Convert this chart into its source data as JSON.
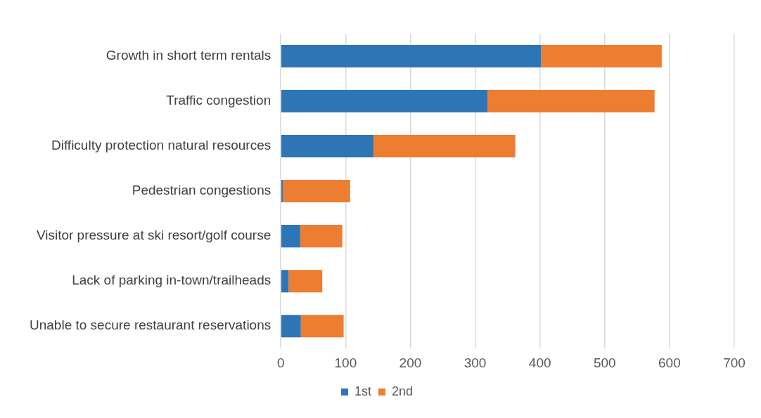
{
  "chart_data": {
    "type": "bar",
    "orientation": "horizontal",
    "stacked": true,
    "categories": [
      "Growth in short term rentals",
      "Traffic congestion",
      "Difficulty protection natural resources",
      "Pedestrian congestions",
      "Visitor pressure at ski resort/golf course",
      "Lack of parking in-town/trailheads",
      "Unable to secure restaurant reservations"
    ],
    "series": [
      {
        "name": "1st",
        "color": "#2e75b6",
        "values": [
          402,
          319,
          143,
          3,
          30,
          12,
          31
        ]
      },
      {
        "name": "2nd",
        "color": "#ed7d31",
        "values": [
          186,
          258,
          219,
          104,
          65,
          52,
          66
        ]
      }
    ],
    "xlim": [
      0,
      700
    ],
    "xticks": [
      0,
      100,
      200,
      300,
      400,
      500,
      600,
      700
    ],
    "grid": "x",
    "legend": "bottom"
  }
}
